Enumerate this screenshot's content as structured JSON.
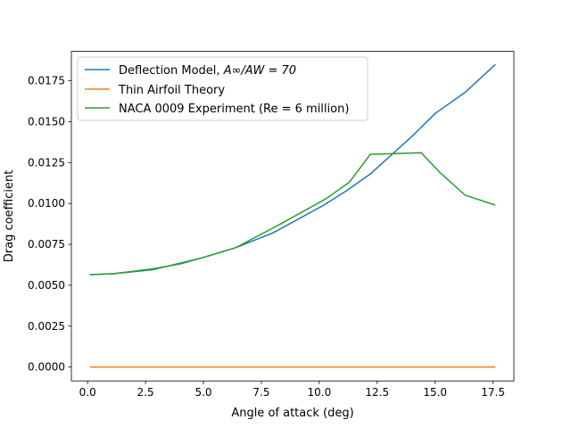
{
  "chart_data": {
    "type": "line",
    "xlabel": "Angle of attack (deg)",
    "ylabel": "Drag coefficient",
    "xlim": [
      -0.7,
      18.4
    ],
    "ylim": [
      -0.00085,
      0.0193
    ],
    "xticks": [
      0.0,
      2.5,
      5.0,
      7.5,
      10.0,
      12.5,
      15.0,
      17.5
    ],
    "xtick_labels": [
      "0.0",
      "2.5",
      "5.0",
      "7.5",
      "10.0",
      "12.5",
      "15.0",
      "17.5"
    ],
    "yticks": [
      0.0,
      0.0025,
      0.005,
      0.0075,
      0.01,
      0.0125,
      0.015,
      0.0175
    ],
    "ytick_labels": [
      "0.0000",
      "0.0025",
      "0.0050",
      "0.0075",
      "0.0100",
      "0.0125",
      "0.0150",
      "0.0175"
    ],
    "grid": false,
    "legend_position": "top-left",
    "series": [
      {
        "name_prefix": "Deflection Model, ",
        "name_math": "A∞/AW = 70",
        "color": "#1f77b4",
        "x": [
          0.1,
          1.1,
          2.8,
          4.0,
          5.0,
          6.4,
          8.0,
          10.2,
          11.2,
          12.2,
          14.0,
          15.0,
          16.3,
          17.6
        ],
        "y": [
          0.00565,
          0.0057,
          0.00595,
          0.00635,
          0.0067,
          0.0073,
          0.0082,
          0.0099,
          0.0108,
          0.0118,
          0.0141,
          0.0155,
          0.0168,
          0.0185
        ]
      },
      {
        "name": "Thin Airfoil Theory",
        "color": "#ff7f0e",
        "x": [
          0.1,
          17.6
        ],
        "y": [
          0.0,
          0.0
        ]
      },
      {
        "name": "NACA 0009 Experiment (Re = 6 million)",
        "color": "#2ca02c",
        "x": [
          0.1,
          1.1,
          2.8,
          4.0,
          5.0,
          6.4,
          8.4,
          10.3,
          11.3,
          12.2,
          14.4,
          15.2,
          16.3,
          17.6
        ],
        "y": [
          0.00565,
          0.0057,
          0.006,
          0.0063,
          0.0067,
          0.0073,
          0.0088,
          0.0103,
          0.0113,
          0.013,
          0.0131,
          0.0119,
          0.0105,
          0.0099
        ]
      }
    ]
  }
}
